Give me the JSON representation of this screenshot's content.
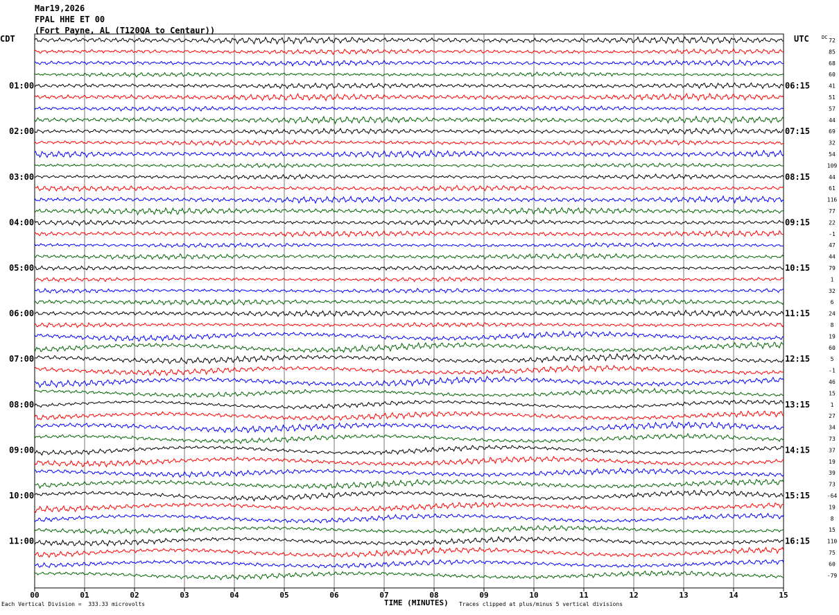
{
  "header": {
    "date": "Mar19,2026",
    "station": "FPAL HHE ET 00",
    "location": "(Fort Payne, AL (T120QA to Centaur))"
  },
  "left_title": "CDT",
  "right_title": "UTC",
  "dc_title": "DC",
  "footer": {
    "scale_note": "Each Vertical Division =  333.33 microvolts",
    "clip_note": "Traces clipped at plus/minus 5 vertical divisions"
  },
  "chart_data": {
    "type": "line",
    "xlabel": "TIME (MINUTES)",
    "xlim": [
      0,
      15
    ],
    "x_ticks": [
      "00",
      "01",
      "02",
      "03",
      "04",
      "05",
      "06",
      "07",
      "08",
      "09",
      "10",
      "11",
      "12",
      "13",
      "14",
      "15"
    ],
    "row_colors": [
      "#000000",
      "#ff0000",
      "#0000ff",
      "#006400"
    ],
    "left_labels": [
      {
        "row": 4,
        "text": "01:00"
      },
      {
        "row": 8,
        "text": "02:00"
      },
      {
        "row": 12,
        "text": "03:00"
      },
      {
        "row": 16,
        "text": "04:00"
      },
      {
        "row": 20,
        "text": "05:00"
      },
      {
        "row": 24,
        "text": "06:00"
      },
      {
        "row": 28,
        "text": "07:00"
      },
      {
        "row": 32,
        "text": "08:00"
      },
      {
        "row": 36,
        "text": "09:00"
      },
      {
        "row": 40,
        "text": "10:00"
      },
      {
        "row": 44,
        "text": "11:00"
      }
    ],
    "right_labels": [
      {
        "row": 4,
        "text": "06:15"
      },
      {
        "row": 8,
        "text": "07:15"
      },
      {
        "row": 12,
        "text": "08:15"
      },
      {
        "row": 16,
        "text": "09:15"
      },
      {
        "row": 20,
        "text": "10:15"
      },
      {
        "row": 24,
        "text": "11:15"
      },
      {
        "row": 28,
        "text": "12:15"
      },
      {
        "row": 32,
        "text": "13:15"
      },
      {
        "row": 36,
        "text": "14:15"
      },
      {
        "row": 40,
        "text": "15:15"
      },
      {
        "row": 44,
        "text": "16:15"
      }
    ],
    "dc_values": [
      "72",
      "85",
      "68",
      "60",
      "41",
      "51",
      "57",
      "44",
      "69",
      "32",
      "54",
      "109",
      "44",
      "61",
      "116",
      "77",
      "22",
      "-1",
      "47",
      "44",
      "79",
      "1",
      "32",
      "6",
      "24",
      "8",
      "19",
      "60",
      "5",
      "-1",
      "46",
      "15",
      "1",
      "27",
      "34",
      "73",
      "37",
      "19",
      "39",
      "73",
      "-64",
      "19",
      "8",
      "15",
      "110",
      "75",
      "60",
      "-79"
    ]
  }
}
